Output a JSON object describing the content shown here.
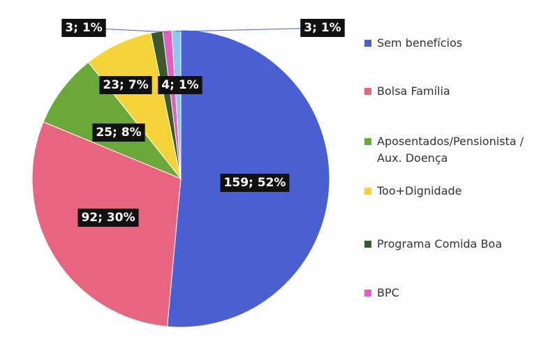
{
  "chart_data": {
    "type": "pie",
    "categories": [
      "Sem benefícios",
      "Bolsa Família",
      "Aposentados/Pensionista / Aux. Doença",
      "Too+Dignidade",
      "Programa Comida Boa",
      "BPC",
      null
    ],
    "values": [
      159,
      92,
      25,
      23,
      4,
      3,
      3
    ],
    "value_labels": [
      "159; 52%",
      "92; 30%",
      "25; 8%",
      "23; 7%",
      "4; 1%",
      "3; 1%",
      "3; 1%"
    ],
    "colors": [
      "#4a5fd0",
      "#e8657f",
      "#6aa83a",
      "#f3d23a",
      "#3b5a2f",
      "#e05fc0",
      "#8ec6f0"
    ],
    "legend": "right"
  }
}
